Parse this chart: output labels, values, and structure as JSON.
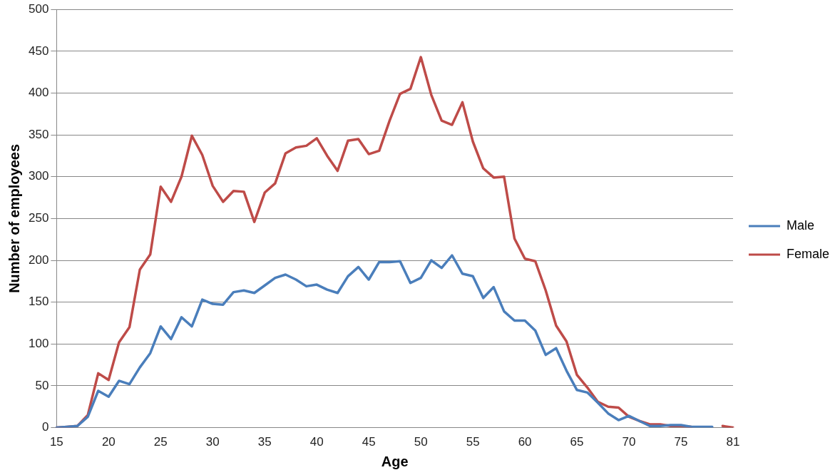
{
  "chart_data": {
    "type": "line",
    "xlabel": "Age",
    "ylabel": "Number of employees",
    "categories": [
      "15",
      null,
      null,
      null,
      null,
      "20",
      null,
      null,
      null,
      null,
      "25",
      null,
      null,
      null,
      null,
      "30",
      null,
      null,
      null,
      null,
      "35",
      null,
      null,
      null,
      null,
      "40",
      null,
      null,
      null,
      null,
      "45",
      null,
      null,
      null,
      null,
      "50",
      null,
      null,
      null,
      null,
      "55",
      null,
      null,
      null,
      null,
      "60",
      null,
      null,
      null,
      null,
      "65",
      null,
      null,
      null,
      null,
      "70",
      null,
      null,
      null,
      null,
      "75",
      null,
      null,
      null,
      null,
      "81"
    ],
    "series": [
      {
        "name": "Male",
        "color": "#4a7ebb",
        "values": [
          0,
          1,
          2,
          13,
          44,
          37,
          56,
          52,
          72,
          89,
          121,
          106,
          132,
          121,
          153,
          148,
          147,
          162,
          164,
          161,
          170,
          179,
          183,
          177,
          169,
          171,
          165,
          161,
          181,
          192,
          177,
          198,
          198,
          199,
          173,
          179,
          200,
          191,
          206,
          184,
          181,
          155,
          168,
          139,
          128,
          128,
          116,
          87,
          95,
          68,
          45,
          42,
          30,
          17,
          9,
          14,
          8,
          2,
          2,
          3,
          3,
          1,
          1,
          1,
          null,
          null
        ]
      },
      {
        "name": "Female",
        "color": "#be4b48",
        "values": [
          0,
          1,
          2,
          15,
          65,
          57,
          102,
          120,
          189,
          207,
          288,
          270,
          300,
          349,
          326,
          289,
          270,
          283,
          282,
          246,
          281,
          292,
          328,
          335,
          337,
          346,
          325,
          307,
          343,
          345,
          327,
          331,
          367,
          399,
          405,
          443,
          398,
          367,
          362,
          389,
          342,
          310,
          299,
          300,
          226,
          202,
          199,
          164,
          122,
          103,
          63,
          48,
          31,
          25,
          24,
          13,
          8,
          4,
          4,
          2,
          2,
          1,
          null,
          null,
          2,
          0
        ]
      }
    ],
    "ylim": [
      0,
      500
    ],
    "yticks": [
      0,
      50,
      100,
      150,
      200,
      250,
      300,
      350,
      400,
      450,
      500
    ],
    "grid": "y",
    "legend": "right",
    "marker": "none",
    "line_style": "solid"
  }
}
